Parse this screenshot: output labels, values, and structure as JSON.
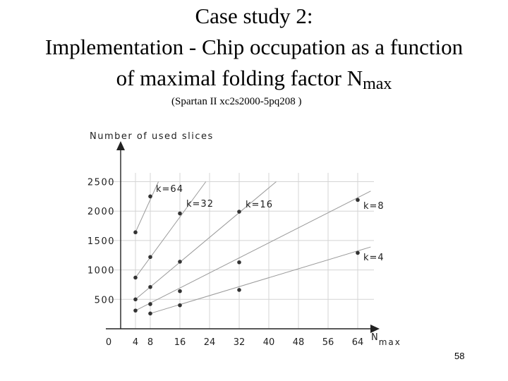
{
  "slide": {
    "title_line1": "Case study 2:",
    "title_line2": "Implementation - Chip occupation as a function",
    "title_line3_prefix": "of maximal folding factor N",
    "title_line3_subscript": "max",
    "subtitle": "(Spartan II xc2s2000-5pq208 )",
    "page_number": "58"
  },
  "chart_data": {
    "type": "scatter",
    "ylabel": "Number of used slices",
    "xlabel": "N",
    "xlabel_subscript": "max",
    "x_ticks": [
      0,
      4,
      8,
      16,
      24,
      32,
      40,
      48,
      56,
      64
    ],
    "y_ticks": [
      500,
      1000,
      1500,
      2000,
      2500
    ],
    "xlim": [
      0,
      72
    ],
    "ylim": [
      0,
      2800
    ],
    "grid": true,
    "series": [
      {
        "name": "k=64",
        "points": [
          [
            4,
            1640
          ],
          [
            8,
            2250
          ]
        ]
      },
      {
        "name": "k=32",
        "points": [
          [
            4,
            870
          ],
          [
            8,
            1220
          ],
          [
            16,
            1960
          ]
        ]
      },
      {
        "name": "k=16",
        "points": [
          [
            4,
            500
          ],
          [
            8,
            710
          ],
          [
            16,
            1140
          ],
          [
            32,
            1990
          ]
        ]
      },
      {
        "name": "k=8",
        "points": [
          [
            4,
            310
          ],
          [
            8,
            420
          ],
          [
            16,
            640
          ],
          [
            32,
            1130
          ],
          [
            64,
            2190
          ]
        ]
      },
      {
        "name": "k=4",
        "points": [
          [
            8,
            260
          ],
          [
            16,
            400
          ],
          [
            32,
            660
          ],
          [
            64,
            1290
          ]
        ]
      }
    ],
    "extensions": [
      {
        "series": "k=64",
        "to": [
          10.2,
          2500
        ]
      },
      {
        "series": "k=32",
        "to": [
          23,
          2500
        ]
      },
      {
        "series": "k=16",
        "to": [
          42,
          2500
        ]
      },
      {
        "series": "k=8",
        "to": [
          67.5,
          2340
        ]
      },
      {
        "series": "k=4",
        "to": [
          67.5,
          1390
        ]
      }
    ]
  }
}
